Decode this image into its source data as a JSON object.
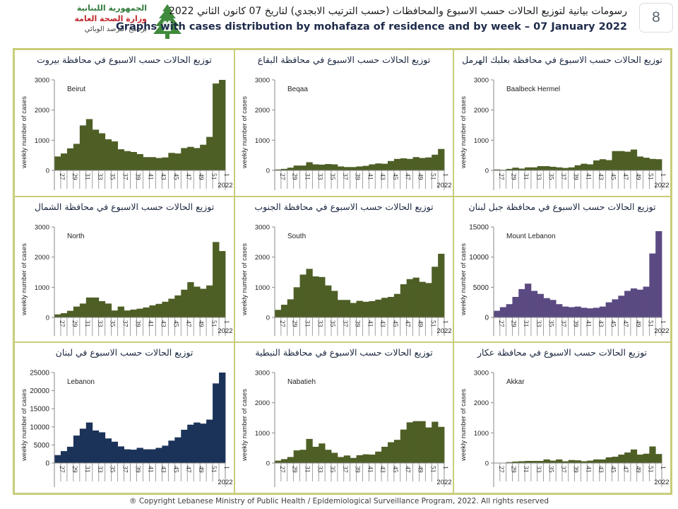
{
  "header": {
    "logo_lines": [
      "الجمهورية اللبنانية",
      "وزارة الصحة العامة",
      "برنامج الترصد الوبائي"
    ],
    "title_ar": "رسومات بيانية لتوزيع الحالات حسب الاسبوع  والمحافظات (حسب الترتيب الابجدي) لتاريخ 07 كانون الثاني 2022",
    "title_en": "Graphs with cases distribution by mohafaza  of residence and by week – 07 January 2022",
    "page_number": "8"
  },
  "footer": {
    "copyright": "® Copyright Lebanese Ministry of Public Health / Epidemiological Surveillance Program, 2022. All rights reserved"
  },
  "colors": {
    "olive": "#4e5f26",
    "purple": "#5b4a82",
    "navy": "#1c3359",
    "frame": "#c9cd78"
  },
  "chart_data": [
    {
      "type": "bar",
      "title": "توزيع الحالات حسب الاسبوع في محافظة بيروت",
      "label": "Beirut",
      "ylabel": "weekly number of cases",
      "xlabel": "2022",
      "ylim": [
        0,
        3000
      ],
      "yticks": [
        0,
        1000,
        2000,
        3000
      ],
      "color": "#4e5f26",
      "categories": [
        "27",
        "28",
        "29",
        "30",
        "31",
        "32",
        "33",
        "34",
        "35",
        "36",
        "37",
        "38",
        "39",
        "40",
        "41",
        "42",
        "43",
        "44",
        "45",
        "46",
        "47",
        "48",
        "49",
        "50",
        "51",
        "52",
        "1"
      ],
      "xtick_labels": [
        "27",
        "29",
        "31",
        "33",
        "35",
        "37",
        "39",
        "41",
        "43",
        "45",
        "47",
        "49",
        "51",
        "1"
      ],
      "values": [
        460,
        560,
        730,
        880,
        1490,
        1700,
        1350,
        1230,
        1030,
        960,
        700,
        640,
        610,
        540,
        440,
        440,
        410,
        430,
        580,
        560,
        740,
        780,
        740,
        850,
        1110,
        2880,
        3000
      ]
    },
    {
      "type": "bar",
      "title": "توزيع الحالات حسب الاسبوع في محافظة البقاع",
      "label": "Beqaa",
      "ylabel": "weekly number of cases",
      "xlabel": "2022",
      "ylim": [
        0,
        3000
      ],
      "yticks": [
        0,
        1000,
        2000,
        3000
      ],
      "color": "#4e5f26",
      "categories": [
        "27",
        "28",
        "29",
        "30",
        "31",
        "32",
        "33",
        "34",
        "35",
        "36",
        "37",
        "38",
        "39",
        "40",
        "41",
        "42",
        "43",
        "44",
        "45",
        "46",
        "47",
        "48",
        "49",
        "50",
        "51",
        "52",
        "1"
      ],
      "xtick_labels": [
        "27",
        "29",
        "31",
        "33",
        "35",
        "37",
        "39",
        "41",
        "43",
        "45",
        "47",
        "49",
        "51",
        "1"
      ],
      "values": [
        30,
        50,
        90,
        160,
        160,
        270,
        200,
        190,
        210,
        200,
        130,
        110,
        110,
        130,
        150,
        200,
        230,
        220,
        310,
        380,
        400,
        380,
        440,
        410,
        430,
        520,
        710
      ]
    },
    {
      "type": "bar",
      "title": "توزيع الحالات حسب الاسبوع في محافظة بعلبك الهرمل",
      "label": "Baalbeck Hermel",
      "ylabel": "weekly number of cases",
      "xlabel": "2022",
      "ylim": [
        0,
        3000
      ],
      "yticks": [
        0,
        1000,
        2000,
        3000
      ],
      "color": "#4e5f26",
      "categories": [
        "27",
        "28",
        "29",
        "30",
        "31",
        "32",
        "33",
        "34",
        "35",
        "36",
        "37",
        "38",
        "39",
        "40",
        "41",
        "42",
        "43",
        "44",
        "45",
        "46",
        "47",
        "48",
        "49",
        "50",
        "51",
        "52",
        "1"
      ],
      "xtick_labels": [
        "27",
        "29",
        "31",
        "33",
        "35",
        "37",
        "39",
        "41",
        "43",
        "45",
        "47",
        "49",
        "51",
        "1"
      ],
      "values": [
        30,
        20,
        50,
        90,
        60,
        100,
        100,
        140,
        140,
        120,
        100,
        80,
        100,
        170,
        220,
        200,
        330,
        370,
        340,
        640,
        640,
        620,
        690,
        460,
        420,
        380,
        370
      ]
    },
    {
      "type": "bar",
      "title": "توزيع الحالات حسب الاسبوع في محافظة الشمال",
      "label": "North",
      "ylabel": "weekly number of cases",
      "xlabel": "2022",
      "ylim": [
        0,
        3000
      ],
      "yticks": [
        0,
        1000,
        2000,
        3000
      ],
      "color": "#4e5f26",
      "categories": [
        "27",
        "28",
        "29",
        "30",
        "31",
        "32",
        "33",
        "34",
        "35",
        "36",
        "37",
        "38",
        "39",
        "40",
        "41",
        "42",
        "43",
        "44",
        "45",
        "46",
        "47",
        "48",
        "49",
        "50",
        "51",
        "52",
        "1"
      ],
      "xtick_labels": [
        "27",
        "29",
        "31",
        "33",
        "35",
        "37",
        "39",
        "41",
        "43",
        "45",
        "47",
        "49",
        "51",
        "1"
      ],
      "values": [
        100,
        140,
        220,
        360,
        460,
        660,
        660,
        540,
        460,
        230,
        360,
        230,
        260,
        290,
        330,
        400,
        450,
        520,
        620,
        730,
        920,
        1170,
        1020,
        950,
        1060,
        2500,
        2200
      ]
    },
    {
      "type": "bar",
      "title": "توزيع الحالات حسب الاسبوع في محافظة الجنوب",
      "label": "South",
      "ylabel": "weekly number of cases",
      "xlabel": "2022",
      "ylim": [
        0,
        3000
      ],
      "yticks": [
        0,
        1000,
        2000,
        3000
      ],
      "color": "#4e5f26",
      "categories": [
        "27",
        "28",
        "29",
        "30",
        "31",
        "32",
        "33",
        "34",
        "35",
        "36",
        "37",
        "38",
        "39",
        "40",
        "41",
        "42",
        "43",
        "44",
        "45",
        "46",
        "47",
        "48",
        "49",
        "50",
        "51",
        "52",
        "1"
      ],
      "xtick_labels": [
        "27",
        "29",
        "31",
        "33",
        "35",
        "37",
        "39",
        "41",
        "43",
        "45",
        "47",
        "49",
        "51",
        "1"
      ],
      "values": [
        250,
        420,
        600,
        1000,
        1420,
        1610,
        1360,
        1340,
        1060,
        880,
        580,
        580,
        480,
        550,
        520,
        540,
        590,
        650,
        680,
        780,
        1100,
        1270,
        1320,
        1180,
        1140,
        1680,
        2110
      ]
    },
    {
      "type": "bar",
      "title": "توزيع الحالات حسب الاسبوع في محافظة جبل لبنان",
      "label": "Mount Lebanon",
      "ylabel": "weekly number of cases",
      "xlabel": "2022",
      "ylim": [
        0,
        15000
      ],
      "yticks": [
        0,
        5000,
        10000,
        15000
      ],
      "color": "#5b4a82",
      "categories": [
        "27",
        "28",
        "29",
        "30",
        "31",
        "32",
        "33",
        "34",
        "35",
        "36",
        "37",
        "38",
        "39",
        "40",
        "41",
        "42",
        "43",
        "44",
        "45",
        "46",
        "47",
        "48",
        "49",
        "50",
        "51",
        "52",
        "1"
      ],
      "xtick_labels": [
        "27",
        "29",
        "31",
        "33",
        "35",
        "37",
        "39",
        "41",
        "43",
        "45",
        "47",
        "49",
        "51",
        "1"
      ],
      "values": [
        1100,
        1700,
        2200,
        3400,
        4700,
        5600,
        4400,
        3900,
        3200,
        2900,
        2200,
        1800,
        1700,
        1800,
        1600,
        1500,
        1600,
        1800,
        2500,
        3000,
        3600,
        4400,
        4800,
        4600,
        5100,
        10600,
        14300
      ]
    },
    {
      "type": "bar",
      "title": "توزيع الحالات حسب الاسبوع في لبنان",
      "label": "Lebanon",
      "ylabel": "weekly number of cases",
      "xlabel": "2022",
      "ylim": [
        0,
        25000
      ],
      "yticks": [
        0,
        5000,
        10000,
        15000,
        20000,
        25000
      ],
      "color": "#1c3359",
      "categories": [
        "27",
        "28",
        "29",
        "30",
        "31",
        "32",
        "33",
        "34",
        "35",
        "36",
        "37",
        "38",
        "39",
        "40",
        "41",
        "42",
        "43",
        "44",
        "45",
        "46",
        "47",
        "48",
        "49",
        "50",
        "51",
        "52",
        "1"
      ],
      "xtick_labels": [
        "27",
        "29",
        "31",
        "33",
        "35",
        "37",
        "39",
        "41",
        "43",
        "45",
        "47",
        "49",
        "51",
        "1"
      ],
      "values": [
        2200,
        3300,
        4500,
        7600,
        9500,
        11200,
        9000,
        8500,
        6800,
        5900,
        4600,
        3800,
        3700,
        4200,
        3800,
        3800,
        4200,
        4800,
        6200,
        7100,
        9200,
        10600,
        11200,
        10900,
        12000,
        22000,
        25000
      ]
    },
    {
      "type": "bar",
      "title": "توزيع الحالات حسب الاسبوع في محافظة النبطية",
      "label": "Nabatieh",
      "ylabel": "weekly number of cases",
      "xlabel": "2022",
      "ylim": [
        0,
        3000
      ],
      "yticks": [
        0,
        1000,
        2000,
        3000
      ],
      "color": "#4e5f26",
      "categories": [
        "27",
        "28",
        "29",
        "30",
        "31",
        "32",
        "33",
        "34",
        "35",
        "36",
        "37",
        "38",
        "39",
        "40",
        "41",
        "42",
        "43",
        "44",
        "45",
        "46",
        "47",
        "48",
        "49",
        "50",
        "51",
        "52",
        "1"
      ],
      "xtick_labels": [
        "27",
        "29",
        "31",
        "33",
        "35",
        "37",
        "39",
        "41",
        "43",
        "45",
        "47",
        "49",
        "51",
        "1"
      ],
      "values": [
        80,
        130,
        200,
        420,
        440,
        800,
        540,
        650,
        440,
        340,
        200,
        250,
        170,
        260,
        290,
        280,
        380,
        540,
        690,
        770,
        1110,
        1350,
        1390,
        1390,
        1180,
        1370,
        1200
      ]
    },
    {
      "type": "bar",
      "title": "توزيع الحالات حسب الاسبوع في محافظة عكار",
      "label": "Akkar",
      "ylabel": "weekly number of cases",
      "xlabel": "2022",
      "ylim": [
        0,
        3000
      ],
      "yticks": [
        0,
        1000,
        2000,
        3000
      ],
      "color": "#4e5f26",
      "categories": [
        "27",
        "28",
        "29",
        "30",
        "31",
        "32",
        "33",
        "34",
        "35",
        "36",
        "37",
        "38",
        "39",
        "40",
        "41",
        "42",
        "43",
        "44",
        "45",
        "46",
        "47",
        "48",
        "49",
        "50",
        "51",
        "52",
        "1"
      ],
      "xtick_labels": [
        "27",
        "29",
        "31",
        "33",
        "35",
        "37",
        "39",
        "41",
        "43",
        "45",
        "47",
        "49",
        "51",
        "1"
      ],
      "values": [
        10,
        10,
        30,
        50,
        60,
        70,
        70,
        70,
        120,
        80,
        120,
        60,
        100,
        90,
        60,
        80,
        120,
        120,
        190,
        210,
        280,
        350,
        450,
        280,
        310,
        550,
        300
      ]
    }
  ]
}
